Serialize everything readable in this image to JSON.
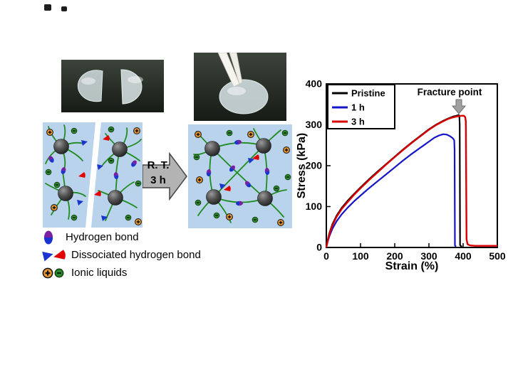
{
  "arrow": {
    "line1": "R. T.",
    "line2": "3 h"
  },
  "legend": {
    "items": [
      {
        "label": "Hydrogen bond",
        "icon": "purple-blue-oval"
      },
      {
        "label": "Dissociated hydrogen bond",
        "icon": "blue-and-red-wedges"
      },
      {
        "label": "Ionic liquids",
        "icon": "orange-plus-circle-green-minus-circle"
      }
    ]
  },
  "chart_data": {
    "type": "line",
    "title": "",
    "xlabel": "Strain (%)",
    "ylabel": "Stress (kPa)",
    "xlim": [
      0,
      500
    ],
    "ylim": [
      0,
      400
    ],
    "xticks": [
      0,
      100,
      200,
      300,
      400,
      500
    ],
    "yticks": [
      0,
      100,
      200,
      300,
      400
    ],
    "grid": false,
    "legend_position": "top-left-inside",
    "annotation": {
      "text": "Fracture point",
      "arrow": "down",
      "x": 400,
      "y": 330
    },
    "series": [
      {
        "name": "Pristine",
        "color": "#000000",
        "width": 2.2,
        "points": [
          [
            0,
            0
          ],
          [
            4,
            18
          ],
          [
            10,
            38
          ],
          [
            18,
            57
          ],
          [
            30,
            78
          ],
          [
            45,
            97
          ],
          [
            62,
            114
          ],
          [
            80,
            130
          ],
          [
            100,
            147
          ],
          [
            125,
            167
          ],
          [
            150,
            186
          ],
          [
            175,
            204
          ],
          [
            200,
            222
          ],
          [
            225,
            240
          ],
          [
            250,
            257
          ],
          [
            275,
            273
          ],
          [
            300,
            289
          ],
          [
            320,
            300
          ],
          [
            340,
            309
          ],
          [
            355,
            315
          ],
          [
            370,
            320
          ],
          [
            380,
            322
          ],
          [
            387,
            324
          ],
          [
            389,
            322
          ],
          [
            390,
            300
          ],
          [
            391,
            6
          ],
          [
            394,
            3
          ],
          [
            397,
            3
          ]
        ]
      },
      {
        "name": "1 h",
        "color": "#1515c8",
        "width": 2.2,
        "points": [
          [
            0,
            0
          ],
          [
            4,
            14
          ],
          [
            10,
            30
          ],
          [
            18,
            46
          ],
          [
            30,
            64
          ],
          [
            45,
            81
          ],
          [
            62,
            97
          ],
          [
            80,
            112
          ],
          [
            100,
            127
          ],
          [
            125,
            145
          ],
          [
            150,
            162
          ],
          [
            175,
            179
          ],
          [
            200,
            196
          ],
          [
            225,
            213
          ],
          [
            250,
            229
          ],
          [
            270,
            241
          ],
          [
            285,
            250
          ],
          [
            300,
            259
          ],
          [
            315,
            268
          ],
          [
            330,
            274
          ],
          [
            342,
            277
          ],
          [
            352,
            276
          ],
          [
            362,
            272
          ],
          [
            370,
            267
          ],
          [
            374,
            262
          ],
          [
            375,
            240
          ],
          [
            376,
            5
          ],
          [
            379,
            2
          ]
        ]
      },
      {
        "name": "3 h",
        "color": "#d80000",
        "width": 2.4,
        "points": [
          [
            0,
            0
          ],
          [
            4,
            16
          ],
          [
            10,
            35
          ],
          [
            18,
            54
          ],
          [
            30,
            75
          ],
          [
            45,
            94
          ],
          [
            62,
            111
          ],
          [
            80,
            128
          ],
          [
            100,
            145
          ],
          [
            125,
            165
          ],
          [
            150,
            184
          ],
          [
            175,
            203
          ],
          [
            200,
            221
          ],
          [
            225,
            239
          ],
          [
            250,
            256
          ],
          [
            275,
            272
          ],
          [
            300,
            288
          ],
          [
            320,
            299
          ],
          [
            340,
            308
          ],
          [
            355,
            314
          ],
          [
            370,
            318
          ],
          [
            385,
            321
          ],
          [
            395,
            322
          ],
          [
            402,
            322
          ],
          [
            406,
            319
          ],
          [
            408,
            308
          ],
          [
            410,
            20
          ],
          [
            413,
            8
          ],
          [
            420,
            5
          ],
          [
            435,
            4
          ],
          [
            460,
            4
          ],
          [
            500,
            4
          ]
        ]
      }
    ]
  },
  "colors": {
    "panel_blue": "#b9d3ec",
    "polymer_green": "#1f8c1f",
    "series_pristine": "#000000",
    "series_1h": "#1515c8",
    "series_3h": "#d80000",
    "ion_plus_orange": "#f09a30",
    "ion_minus_green": "#2e8b2e",
    "hbond_purple": "#7b1fa2",
    "hbond_blue": "#1a35cf",
    "healing_arrow_gray": "#b3b3b3",
    "fracture_arrow_gray": "#a0a0a0"
  },
  "icons": {
    "hydrogen_bond": "purple-blue-oval",
    "dissociated_blue": "blue-wedge",
    "dissociated_red": "red-wedge",
    "ion_positive": "orange-circle-plus",
    "ion_negative": "green-circle-minus",
    "healing_arrow": "right-block-arrow",
    "fracture_arrow": "down-block-arrow"
  }
}
